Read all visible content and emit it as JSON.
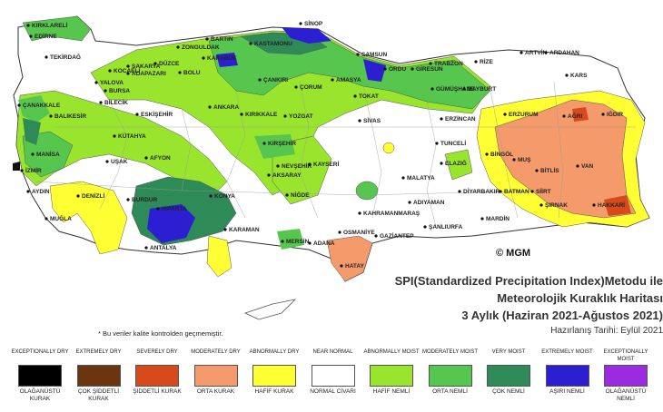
{
  "map": {
    "title_lines": [
      "SPI(Standardized Precipitation Index)Metodu ile",
      "Meteorolojik Kuraklık Haritası",
      "3 Aylık (Haziran 2021-Ağustos 2021)"
    ],
    "prepared_date": "Hazırlanış Tarihi: Eylül 2021",
    "footnote": "* Bu veriler kalite kontrolden geçmemiştir.",
    "copyright": "© MGM",
    "cities": [
      "SİNOP",
      "KIRKLARELİ",
      "EDİRNE",
      "TEKİRDAĞ",
      "BARTIN",
      "ZONGULDAK",
      "KASTAMONU",
      "KARABÜK",
      "DÜZCE",
      "BOLU",
      "SAMSUN",
      "ORDU",
      "GİRESUN",
      "TRABZON",
      "RİZE",
      "ARTVİN",
      "ARDAHAN",
      "KARS",
      "IĞDIR",
      "AĞRI",
      "ERZURUM",
      "BAYBURT",
      "GÜMÜŞHANE",
      "SAKARYA",
      "ADAPAZARI",
      "KOCAELİ",
      "YALOVA",
      "BURSA",
      "BİLECİK",
      "BALIKESİR",
      "ÇANAKKALE",
      "ESKİŞEHİR",
      "ANKARA",
      "KIRIKKALE",
      "ÇANKIRI",
      "ÇORUM",
      "AMASYA",
      "TOKAT",
      "YOZGAT",
      "SİVAS",
      "ERZİNCAN",
      "TUNCELİ",
      "BİNGÖL",
      "MUŞ",
      "BİTLİS",
      "VAN",
      "KÜTAHYA",
      "UŞAK",
      "MANİSA",
      "İZMİR",
      "AFYON",
      "AYDIN",
      "MUĞLA",
      "DENİZLİ",
      "BURDUR",
      "ISPARTA",
      "KONYA",
      "KIRŞEHİR",
      "NEVŞEHİR",
      "AKSARAY",
      "KAYSERİ",
      "NİĞDE",
      "MALATYA",
      "ELAZIĞ",
      "DİYARBAKIR",
      "BATMAN",
      "SİİRT",
      "ŞIRNAK",
      "HAKKARİ",
      "MARDİN",
      "KAHRAMANMARAŞ",
      "ADIYAMAN",
      "ŞANLIURFA",
      "GAZİANTEP",
      "OSMANİYE",
      "ADANA",
      "MERSİN",
      "KARAMAN",
      "HATAY",
      "ANTALYA"
    ],
    "colors": {
      "exceptionally_dry": "#000000",
      "extremely_dry": "#6b3510",
      "severely_dry": "#d84a1b",
      "moderately_dry": "#f59a6b",
      "abnormally_dry": "#ffff33",
      "near_normal": "#ffffff",
      "abnormally_moist": "#99e52e",
      "moderately_moist": "#57c64e",
      "very_moist": "#2e8b57",
      "extremely_moist": "#2b1fd1",
      "exceptionally_moist": "#9b2be0"
    }
  },
  "legend": [
    {
      "en": "EXCEPTIONALLY DRY",
      "tr": "OLAĞANÜSTÜ KURAK",
      "color": "#000000"
    },
    {
      "en": "EXTREMELY DRY",
      "tr": "ÇOK ŞİDDETLİ KURAK",
      "color": "#6b3510"
    },
    {
      "en": "SEVERELY DRY",
      "tr": "ŞİDDETLİ KURAK",
      "color": "#d84a1b"
    },
    {
      "en": "MODERATELY DRY",
      "tr": "ORTA KURAK",
      "color": "#f59a6b"
    },
    {
      "en": "ABNORMALLY DRY",
      "tr": "HAFİF KURAK",
      "color": "#ffff33"
    },
    {
      "en": "NEAR NORMAL",
      "tr": "NORMAL CİVARI",
      "color": "#ffffff"
    },
    {
      "en": "ABNORMALLY MOIST",
      "tr": "HAFİF NEMLİ",
      "color": "#99e52e"
    },
    {
      "en": "MODERATELY MOIST",
      "tr": "ORTA NEMLİ",
      "color": "#57c64e"
    },
    {
      "en": "VERY MOIST",
      "tr": "ÇOK NEMLİ",
      "color": "#2e8b57"
    },
    {
      "en": "EXTREMELY MOIST",
      "tr": "AŞIRI NEMLİ",
      "color": "#2b1fd1"
    },
    {
      "en": "EXCEPTIONALLY MOIST",
      "tr": "OLAĞANÜSTÜ NEMLİ",
      "color": "#9b2be0"
    }
  ]
}
